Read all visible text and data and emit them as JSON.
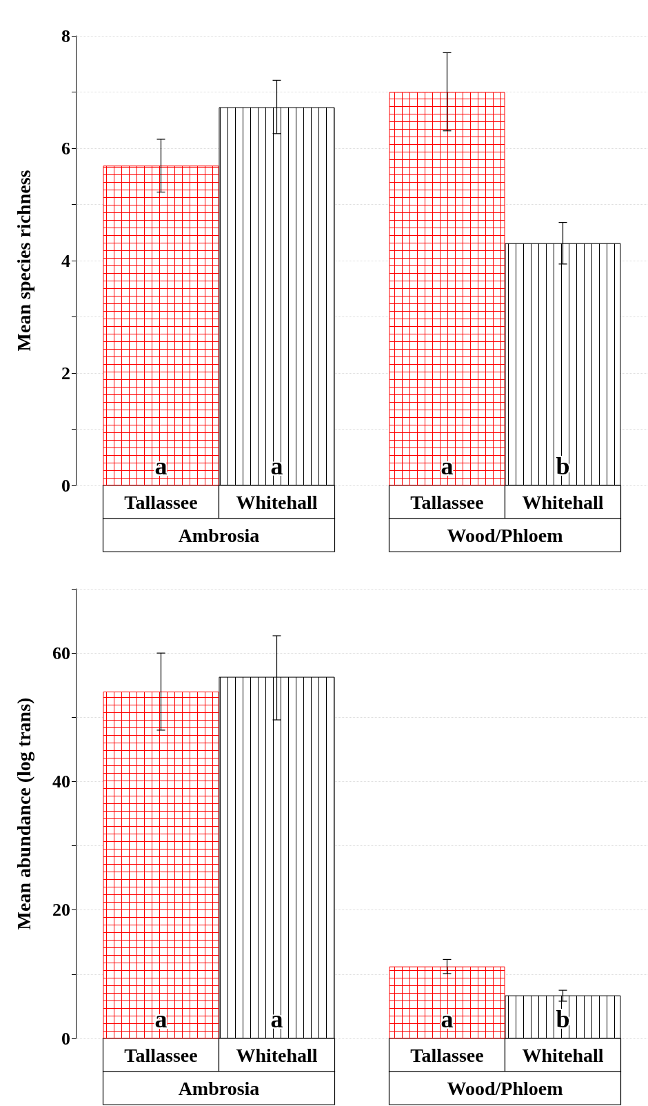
{
  "chart_data": [
    {
      "type": "bar",
      "ylabel": "Mean species richness",
      "categories": [
        "Ambrosia",
        "Wood/Phloem"
      ],
      "series": [
        {
          "name": "Tallassee",
          "color": "#ff0000",
          "values": [
            5.69,
            7.0
          ],
          "errors": [
            [
              5.22,
              6.16
            ],
            [
              6.31,
              7.7
            ]
          ],
          "value_labels": [
            "a",
            "a"
          ]
        },
        {
          "name": "Whitehall",
          "color": "#000000",
          "values": [
            6.73,
            4.31
          ],
          "errors": [
            [
              6.26,
              7.21
            ],
            [
              3.94,
              4.68
            ]
          ],
          "value_labels": [
            "a",
            "b"
          ]
        }
      ],
      "ylim": [
        0,
        8
      ],
      "yticks": [
        0,
        {
          "value": 1,
          "label": null
        },
        2,
        {
          "value": 3,
          "label": null
        },
        4,
        {
          "value": 5,
          "label": null
        },
        6,
        {
          "value": 7,
          "label": null
        },
        8
      ],
      "grid": "y"
    },
    {
      "type": "bar",
      "ylabel": "Mean abundance (log trans)",
      "categories": [
        "Ambrosia",
        "Wood/Phloem"
      ],
      "series": [
        {
          "name": "Tallassee",
          "color": "#ff0000",
          "values": [
            54.0,
            11.2
          ],
          "errors": [
            [
              48.0,
              60.0
            ],
            [
              10.1,
              12.3
            ]
          ],
          "value_labels": [
            "a",
            "a"
          ]
        },
        {
          "name": "Whitehall",
          "color": "#000000",
          "values": [
            56.3,
            6.7
          ],
          "errors": [
            [
              49.6,
              62.7
            ],
            [
              5.8,
              7.5
            ]
          ],
          "value_labels": [
            "a",
            "b"
          ]
        }
      ],
      "ylim": [
        0,
        70
      ],
      "yticks": [
        0,
        {
          "value": 10,
          "label": null
        },
        20,
        {
          "value": 30,
          "label": null
        },
        40,
        {
          "value": 50,
          "label": null
        },
        60,
        {
          "value": 70,
          "label": null
        }
      ],
      "grid": "y"
    }
  ]
}
